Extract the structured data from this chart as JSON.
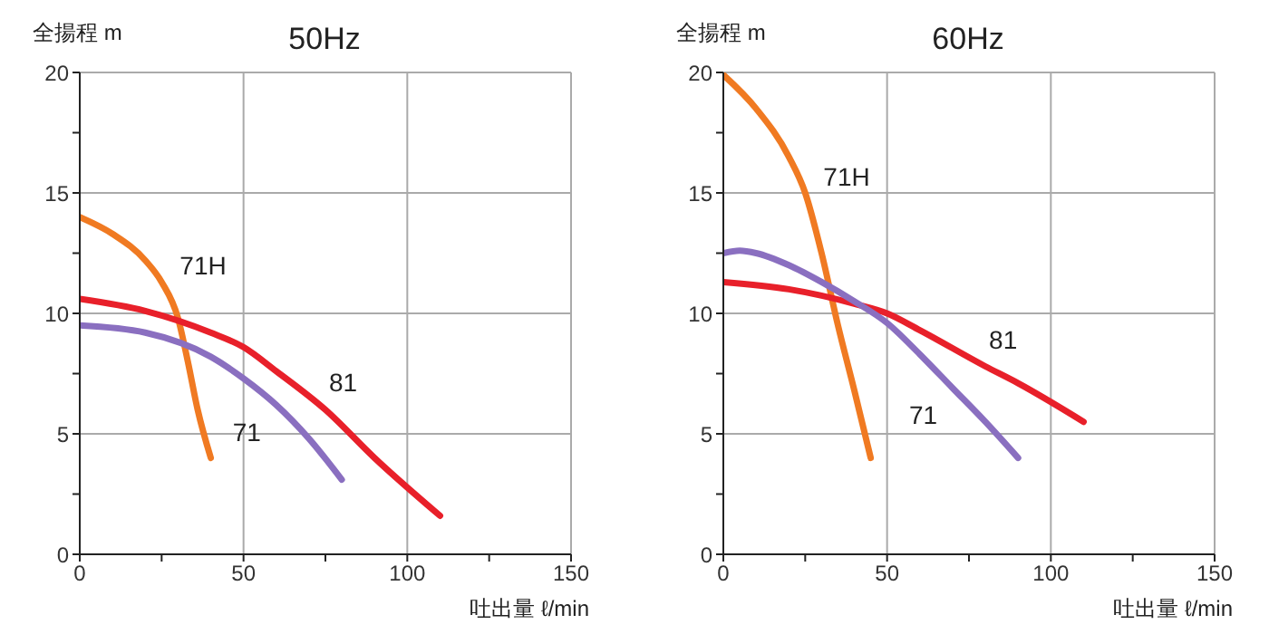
{
  "chart_data": [
    {
      "type": "line",
      "title": "50Hz",
      "xlabel": "吐出量 ℓ/min",
      "ylabel": "全揚程 m",
      "xlim": [
        0,
        150
      ],
      "ylim": [
        0,
        20
      ],
      "xticks": [
        0,
        {
          "value": 25,
          "label": null
        },
        50,
        {
          "value": 75,
          "label": null
        },
        100,
        {
          "value": 125,
          "label": null
        },
        150
      ],
      "yticks": [
        0,
        {
          "value": 2.5,
          "label": null
        },
        5,
        {
          "value": 7.5,
          "label": null
        },
        10,
        {
          "value": 12.5,
          "label": null
        },
        15,
        {
          "value": 17.5,
          "label": null
        },
        20
      ],
      "grid": true,
      "legend": false,
      "marker": "none",
      "line_style": "solid",
      "series": [
        {
          "name": "71H",
          "color": "#f07a22",
          "x": [
            0,
            10,
            20,
            25,
            30,
            33,
            36,
            40
          ],
          "values": [
            14,
            13.3,
            12.2,
            11.3,
            9.8,
            8,
            6,
            4
          ]
        },
        {
          "name": "81",
          "color": "#e8202a",
          "x": [
            0,
            20,
            40,
            50,
            60,
            75,
            90,
            110
          ],
          "values": [
            10.6,
            10.1,
            9.2,
            8.6,
            7.6,
            6,
            4,
            1.6
          ]
        },
        {
          "name": "71",
          "color": "#8a6fc0",
          "x": [
            0,
            20,
            40,
            50,
            60,
            70,
            80
          ],
          "values": [
            9.5,
            9.2,
            8.2,
            7.3,
            6.2,
            4.8,
            3.1
          ]
        }
      ]
    },
    {
      "type": "line",
      "title": "60Hz",
      "xlabel": "吐出量 ℓ/min",
      "ylabel": "全揚程 m",
      "xlim": [
        0,
        150
      ],
      "ylim": [
        0,
        20
      ],
      "xticks": [
        0,
        {
          "value": 25,
          "label": null
        },
        50,
        {
          "value": 75,
          "label": null
        },
        100,
        {
          "value": 125,
          "label": null
        },
        150
      ],
      "yticks": [
        0,
        {
          "value": 2.5,
          "label": null
        },
        5,
        {
          "value": 7.5,
          "label": null
        },
        10,
        {
          "value": 12.5,
          "label": null
        },
        15,
        {
          "value": 17.5,
          "label": null
        },
        20
      ],
      "grid": true,
      "legend": false,
      "marker": "none",
      "line_style": "solid",
      "series": [
        {
          "name": "71H",
          "color": "#f07a22",
          "x": [
            0,
            10,
            20,
            25,
            30,
            35,
            40,
            45
          ],
          "values": [
            19.9,
            18.5,
            16.5,
            15,
            12.5,
            9.5,
            6.8,
            4
          ]
        },
        {
          "name": "81",
          "color": "#e8202a",
          "x": [
            0,
            20,
            40,
            50,
            60,
            80,
            90,
            110
          ],
          "values": [
            11.3,
            11,
            10.4,
            10,
            9.3,
            7.8,
            7.1,
            5.5
          ]
        },
        {
          "name": "71",
          "color": "#8a6fc0",
          "x": [
            0,
            5,
            10,
            20,
            30,
            40,
            50,
            60,
            70,
            80,
            90
          ],
          "values": [
            12.5,
            12.6,
            12.5,
            12,
            11.3,
            10.5,
            9.6,
            8.3,
            6.9,
            5.5,
            4
          ]
        }
      ]
    }
  ]
}
